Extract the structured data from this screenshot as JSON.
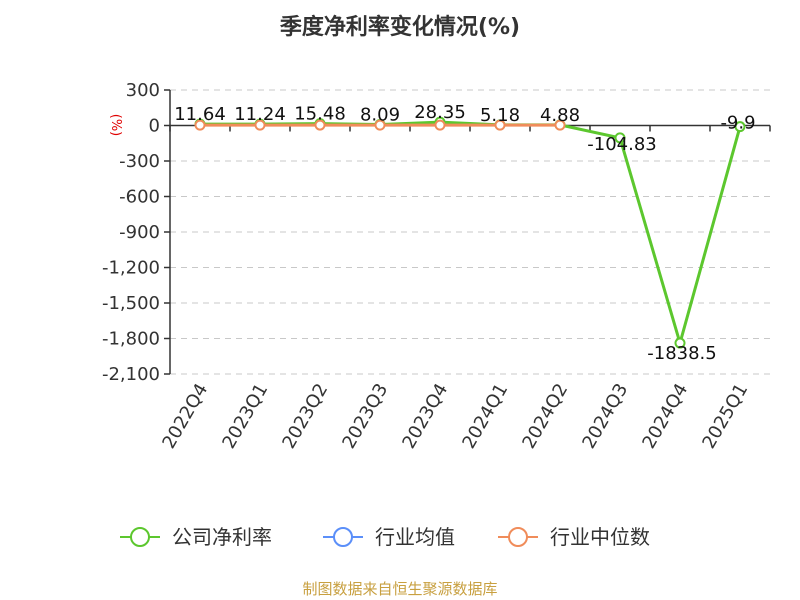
{
  "chart_data": {
    "type": "line",
    "title": "季度净利率变化情况(%)",
    "ylabel": "(%)",
    "xlabel": "",
    "categories": [
      "2022Q4",
      "2023Q1",
      "2023Q2",
      "2023Q3",
      "2023Q4",
      "2024Q1",
      "2024Q2",
      "2024Q3",
      "2024Q4",
      "2025Q1"
    ],
    "ylim": [
      -2100,
      300
    ],
    "yticks": [
      300,
      0,
      -300,
      -600,
      -900,
      -1200,
      -1500,
      -1800,
      -2100
    ],
    "ytick_labels": [
      "300",
      "0",
      "-300",
      "-600",
      "-900",
      "-1,200",
      "-1,500",
      "-1,800",
      "-2,100"
    ],
    "grid": true,
    "legend_position": "bottom",
    "series": [
      {
        "name": "公司净利率",
        "color": "#5cc72e",
        "values": [
          11.64,
          11.24,
          15.48,
          8.09,
          28.35,
          5.18,
          4.88,
          -104.83,
          -1838.5,
          -9.9
        ],
        "labels": [
          "11.64",
          "11.24",
          "15.48",
          "8.09",
          "28.35",
          "5.18",
          "4.88",
          "-104.83",
          "-1838.5",
          "-9.9"
        ]
      },
      {
        "name": "行业均值",
        "color": "#5b8ff9",
        "values": [
          null,
          null,
          null,
          null,
          null,
          null,
          null,
          null,
          null,
          null
        ]
      },
      {
        "name": "行业中位数",
        "color": "#f08c5a",
        "values": [
          3.0,
          3.0,
          3.5,
          3.0,
          3.0,
          3.0,
          3.0,
          null,
          null,
          null
        ]
      }
    ]
  },
  "source_text": "制图数据来自恒生聚源数据库"
}
